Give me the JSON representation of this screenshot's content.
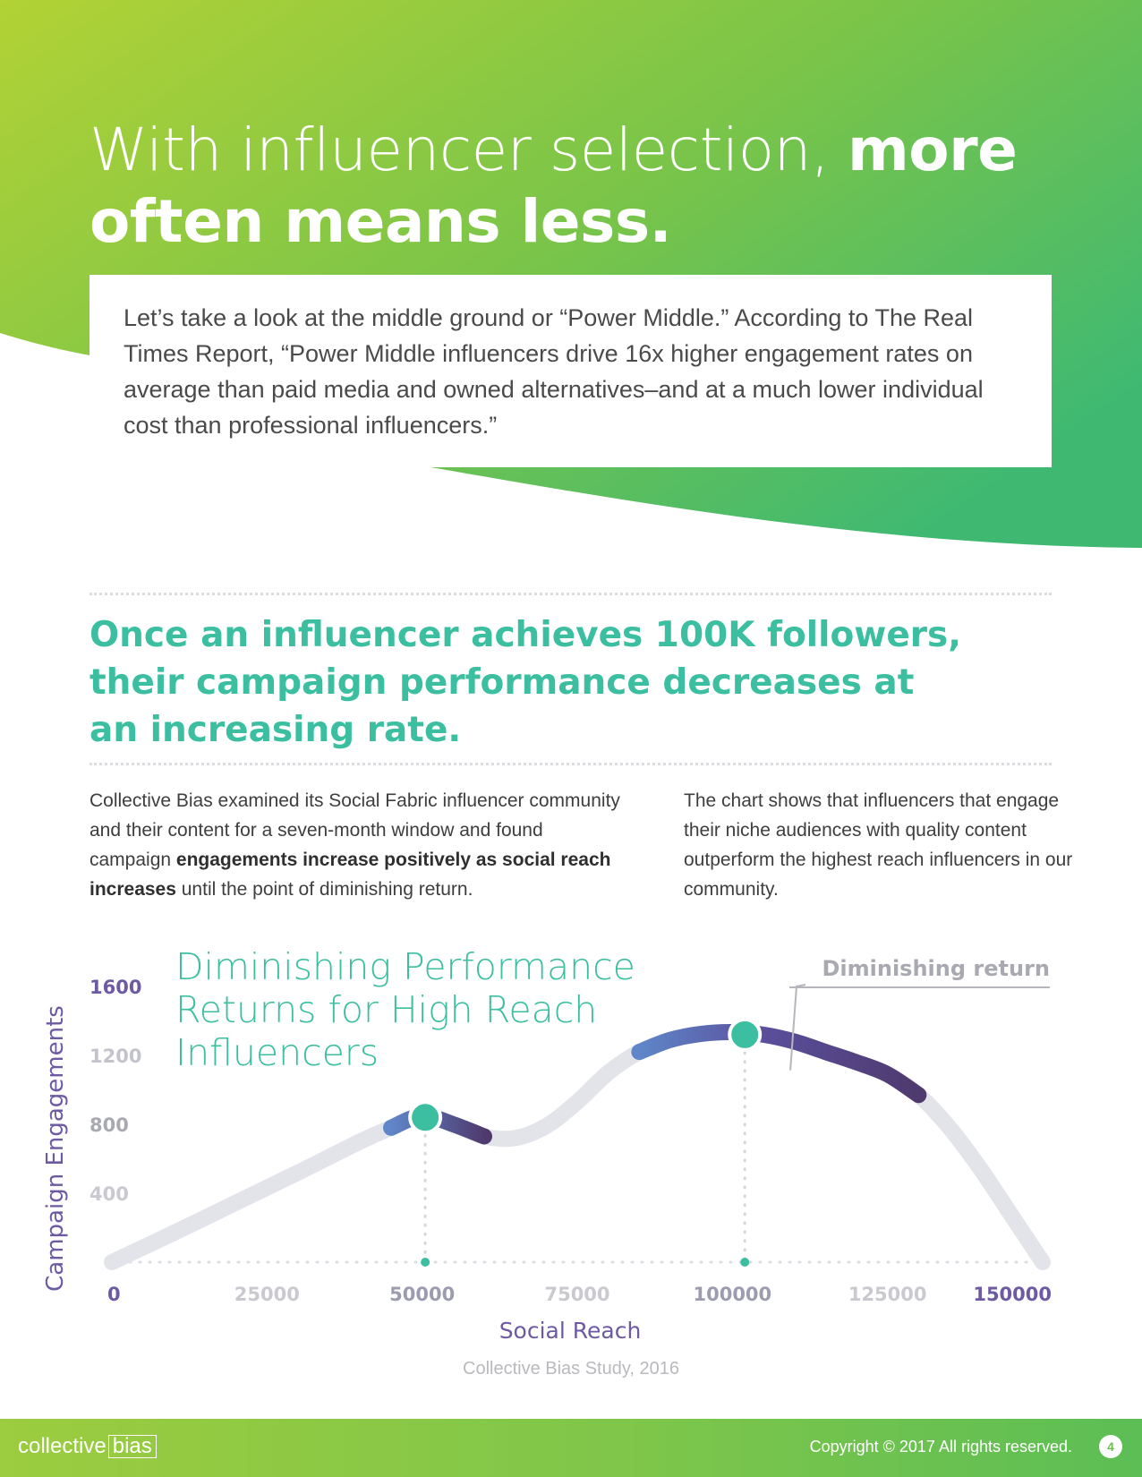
{
  "headline": {
    "light": "With influencer selection, ",
    "bold": "more often means less."
  },
  "intro": "Let’s take a look at the middle ground or “Power Middle.” According to The Real Times Report, “Power Middle influencers drive 16x higher engagement rates on average than paid media and owned alternatives–and at a much lower individual cost than professional influencers.”",
  "section_heading": "Once an influencer achieves 100K followers, their campaign performance decreases at an increasing rate.",
  "body_left": {
    "p1": "Collective Bias examined its Social Fabric influencer community and their content for a seven-month window and found campaign ",
    "bold": "engagements increase positively as social reach increases",
    "p2": " until the point of diminishing return."
  },
  "body_right": "The chart shows that influencers that engage their niche audiences with quality content outperform the highest reach influencers in our community.",
  "chart_title": "Diminishing Performance Returns for High Reach Influencers",
  "chart_data": {
    "type": "line",
    "title": "Diminishing Performance Returns for High Reach Influencers",
    "xlabel": "Social Reach",
    "ylabel": "Campaign Engagements",
    "x_ticks": [
      "0",
      "25000",
      "50000",
      "75000",
      "100000",
      "125000",
      "150000"
    ],
    "y_ticks": [
      "1600",
      "1200",
      "800",
      "400"
    ],
    "xlim": [
      0,
      150000
    ],
    "ylim": [
      0,
      1600
    ],
    "series": [
      {
        "x": [
          0,
          10000,
          20000,
          30000,
          40000,
          45000,
          50000,
          55000,
          60000,
          65000,
          70000,
          75000,
          80000,
          85000,
          90000,
          95000,
          100000,
          105000,
          110000,
          115000,
          120000,
          125000,
          130000,
          135000,
          140000,
          145000,
          150000
        ],
        "y": [
          0,
          170,
          345,
          520,
          700,
          780,
          850,
          800,
          730,
          720,
          790,
          930,
          1100,
          1220,
          1290,
          1325,
          1335,
          1320,
          1280,
          1220,
          1160,
          1090,
          970,
          780,
          540,
          270,
          0
        ]
      }
    ],
    "highlights": [
      {
        "x": 50500,
        "y": 840
      },
      {
        "x": 102000,
        "y": 1320
      }
    ],
    "annotation": "Diminishing return",
    "grid": false,
    "colors": {
      "curve": "#e3e4ea",
      "highlight_start": "#5f86c8",
      "highlight_end": "#4f3a6e",
      "marker": "#3cbfa0",
      "axis_label": "#6d5aa3",
      "tick_dim": "#c3c3cb"
    }
  },
  "source": "Collective Bias Study, 2016",
  "footer": {
    "logo_text": "collective",
    "logo_box": "bias",
    "copyright": "Copyright © 2017 All rights reserved.",
    "page": "4"
  }
}
